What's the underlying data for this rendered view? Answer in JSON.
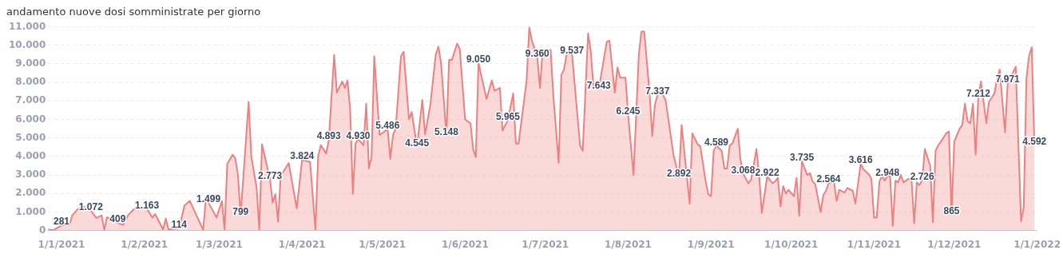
{
  "chart_data": {
    "type": "area",
    "title": "andamento nuove dosi somministrate per giorno",
    "xlim": [
      "2020-12-27",
      "2022-01-01"
    ],
    "xticks": [
      {
        "value": "2021-01-01",
        "label": "1/1/2021"
      },
      {
        "value": "2021-02-01",
        "label": "1/2/2021"
      },
      {
        "value": "2021-03-01",
        "label": "1/3/2021"
      },
      {
        "value": "2021-04-01",
        "label": "1/4/2021"
      },
      {
        "value": "2021-05-01",
        "label": "1/5/2021"
      },
      {
        "value": "2021-06-01",
        "label": "1/6/2021"
      },
      {
        "value": "2021-07-01",
        "label": "1/7/2021"
      },
      {
        "value": "2021-08-01",
        "label": "1/8/2021"
      },
      {
        "value": "2021-09-01",
        "label": "1/9/2021"
      },
      {
        "value": "2021-10-01",
        "label": "1/10/2021"
      },
      {
        "value": "2021-11-01",
        "label": "1/11/2021"
      },
      {
        "value": "2021-12-01",
        "label": "1/12/2021"
      },
      {
        "value": "2022-01-01",
        "label": "1/1/2022"
      }
    ],
    "ylim": [
      0,
      11000
    ],
    "yticks": [
      0,
      {
        "value": 1000,
        "label": "1.000"
      },
      {
        "value": 2000,
        "label": "2.000"
      },
      {
        "value": 3000,
        "label": "3.000"
      },
      {
        "value": 4000,
        "label": "4.000"
      },
      {
        "value": 5000,
        "label": "5.000"
      },
      {
        "value": 6000,
        "label": "6.000"
      },
      {
        "value": 7000,
        "label": "7.000"
      },
      {
        "value": 8000,
        "label": "8.000"
      },
      {
        "value": 9000,
        "label": "9.000"
      },
      {
        "value": 10000,
        "label": "10.000"
      },
      {
        "value": 11000,
        "label": "11.000"
      }
    ],
    "grid": "y",
    "legend": false,
    "x": [
      "2020-12-27",
      "2020-12-29",
      "2021-01-01",
      "2021-01-04",
      "2021-01-05",
      "2021-01-07",
      "2021-01-09",
      "2021-01-12",
      "2021-01-14",
      "2021-01-16",
      "2021-01-17",
      "2021-01-18",
      "2021-01-22",
      "2021-01-24",
      "2021-01-26",
      "2021-01-28",
      "2021-01-30",
      "2021-02-02",
      "2021-02-04",
      "2021-02-05",
      "2021-02-08",
      "2021-02-09",
      "2021-02-10",
      "2021-02-14",
      "2021-02-16",
      "2021-02-18",
      "2021-02-23",
      "2021-02-24",
      "2021-02-25",
      "2021-02-28",
      "2021-03-02",
      "2021-03-03",
      "2021-03-04",
      "2021-03-06",
      "2021-03-07",
      "2021-03-08",
      "2021-03-09",
      "2021-03-12",
      "2021-03-13",
      "2021-03-15",
      "2021-03-16",
      "2021-03-17",
      "2021-03-20",
      "2021-03-21",
      "2021-03-22",
      "2021-03-23",
      "2021-03-24",
      "2021-03-27",
      "2021-03-30",
      "2021-04-01",
      "2021-04-04",
      "2021-04-06",
      "2021-04-07",
      "2021-04-08",
      "2021-04-10",
      "2021-04-11",
      "2021-04-13",
      "2021-04-14",
      "2021-04-16",
      "2021-04-17",
      "2021-04-18",
      "2021-04-19",
      "2021-04-20",
      "2021-04-21",
      "2021-04-22",
      "2021-04-24",
      "2021-04-25",
      "2021-04-26",
      "2021-04-27",
      "2021-04-28",
      "2021-04-30",
      "2021-05-03",
      "2021-05-04",
      "2021-05-05",
      "2021-05-06",
      "2021-05-08",
      "2021-05-09",
      "2021-05-11",
      "2021-05-12",
      "2021-05-14",
      "2021-05-16",
      "2021-05-17",
      "2021-05-19",
      "2021-05-21",
      "2021-05-22",
      "2021-05-23",
      "2021-05-25",
      "2021-05-26",
      "2021-05-27",
      "2021-05-29",
      "2021-05-30",
      "2021-06-01",
      "2021-06-03",
      "2021-06-04",
      "2021-06-05",
      "2021-06-06",
      "2021-06-09",
      "2021-06-11",
      "2021-06-12",
      "2021-06-14",
      "2021-06-15",
      "2021-06-17",
      "2021-06-19",
      "2021-06-20",
      "2021-06-21",
      "2021-06-24",
      "2021-06-25",
      "2021-06-26",
      "2021-06-28",
      "2021-06-29",
      "2021-06-30",
      "2021-07-03",
      "2021-07-04",
      "2021-07-06",
      "2021-07-07",
      "2021-07-08",
      "2021-07-09",
      "2021-07-11",
      "2021-07-14",
      "2021-07-15",
      "2021-07-17",
      "2021-07-18",
      "2021-07-19",
      "2021-07-21",
      "2021-07-24",
      "2021-07-25",
      "2021-07-27",
      "2021-07-28",
      "2021-07-29",
      "2021-07-31",
      "2021-08-01",
      "2021-08-03",
      "2021-08-05",
      "2021-08-06",
      "2021-08-07",
      "2021-08-09",
      "2021-08-10",
      "2021-08-11",
      "2021-08-12",
      "2021-08-13",
      "2021-08-15",
      "2021-08-18",
      "2021-08-20",
      "2021-08-21",
      "2021-08-24",
      "2021-08-25",
      "2021-08-27",
      "2021-08-28",
      "2021-08-30",
      "2021-08-31",
      "2021-09-01",
      "2021-09-02",
      "2021-09-03",
      "2021-09-05",
      "2021-09-06",
      "2021-09-07",
      "2021-09-08",
      "2021-09-09",
      "2021-09-11",
      "2021-09-12",
      "2021-09-13",
      "2021-09-15",
      "2021-09-16",
      "2021-09-18",
      "2021-09-19",
      "2021-09-20",
      "2021-09-22",
      "2021-09-24",
      "2021-09-25",
      "2021-09-26",
      "2021-09-27",
      "2021-09-28",
      "2021-09-29",
      "2021-09-30",
      "2021-10-02",
      "2021-10-03",
      "2021-10-04",
      "2021-10-05",
      "2021-10-07",
      "2021-10-08",
      "2021-10-09",
      "2021-10-10",
      "2021-10-12",
      "2021-10-13",
      "2021-10-14",
      "2021-10-15",
      "2021-10-17",
      "2021-10-18",
      "2021-10-19",
      "2021-10-21",
      "2021-10-22",
      "2021-10-24",
      "2021-10-25",
      "2021-10-27",
      "2021-10-28",
      "2021-10-30",
      "2021-10-31",
      "2021-11-01",
      "2021-11-02",
      "2021-11-03",
      "2021-11-04",
      "2021-11-05",
      "2021-11-06",
      "2021-11-07",
      "2021-11-08",
      "2021-11-09",
      "2021-11-10",
      "2021-11-11",
      "2021-11-12",
      "2021-11-14",
      "2021-11-15",
      "2021-11-16",
      "2021-11-17",
      "2021-11-18",
      "2021-11-19",
      "2021-11-20",
      "2021-11-22",
      "2021-11-23",
      "2021-11-24",
      "2021-11-25",
      "2021-11-26",
      "2021-11-28",
      "2021-11-29",
      "2021-11-30",
      "2021-12-01",
      "2021-12-03",
      "2021-12-04",
      "2021-12-05",
      "2021-12-06",
      "2021-12-07",
      "2021-12-08",
      "2021-12-09",
      "2021-12-10",
      "2021-12-11",
      "2021-12-13",
      "2021-12-14",
      "2021-12-16",
      "2021-12-17",
      "2021-12-18",
      "2021-12-20",
      "2021-12-21",
      "2021-12-22",
      "2021-12-24",
      "2021-12-26",
      "2021-12-27",
      "2021-12-28",
      "2021-12-29",
      "2021-12-30",
      "2021-12-31"
    ],
    "series": [
      {
        "color": "#ee8080",
        "values": [
          60,
          20,
          281,
          300,
          820,
          1140,
          1320,
          1072,
          680,
          820,
          30,
          720,
          409,
          300,
          850,
          1150,
          1250,
          1163,
          700,
          900,
          60,
          650,
          60,
          114,
          1350,
          1600,
          30,
          1780,
          1499,
          700,
          1600,
          50,
          3600,
          4100,
          3900,
          3000,
          799,
          6950,
          4000,
          2300,
          50,
          4650,
          2773,
          1500,
          1970,
          480,
          2950,
          3650,
          1200,
          3824,
          3700,
          30,
          4000,
          4620,
          4150,
          4893,
          9480,
          7450,
          8050,
          7700,
          8100,
          6500,
          1980,
          4700,
          4930,
          4600,
          6850,
          3350,
          4000,
          9420,
          5160,
          5486,
          3870,
          5150,
          5500,
          9420,
          9650,
          6000,
          6400,
          4545,
          7050,
          5200,
          6800,
          9500,
          9930,
          9050,
          5148,
          9230,
          9200,
          10100,
          9800,
          6000,
          5800,
          4400,
          3950,
          9050,
          7100,
          8100,
          7550,
          7700,
          5400,
          5965,
          7400,
          4700,
          4700,
          8100,
          10950,
          10250,
          9360,
          7700,
          9700,
          9750,
          7300,
          3650,
          8400,
          8700,
          9550,
          9537,
          4600,
          4300,
          10650,
          9700,
          7800,
          7643,
          10200,
          10250,
          7450,
          8800,
          8250,
          8250,
          6245,
          3000,
          9550,
          10750,
          10750,
          7450,
          5100,
          6800,
          7337,
          7600,
          7050,
          4050,
          2892,
          5700,
          1450,
          5250,
          4650,
          4550,
          2650,
          1950,
          1850,
          4300,
          4589,
          4300,
          3350,
          3350,
          4600,
          4700,
          5500,
          3850,
          3068,
          2550,
          2750,
          4400,
          3000,
          950,
          2922,
          2550,
          2650,
          2850,
          1300,
          2400,
          2000,
          2200,
          1850,
          2850,
          800,
          3735,
          3000,
          3100,
          2650,
          2500,
          1000,
          1900,
          2150,
          2564,
          2650,
          1600,
          2200,
          2050,
          2300,
          2150,
          1450,
          3616,
          3300,
          3050,
          2800,
          700,
          700,
          2650,
          2950,
          2700,
          2948,
          2950,
          250,
          2700,
          2600,
          3000,
          2600,
          2800,
          2800,
          400,
          2600,
          2450,
          2726,
          4400,
          3500,
          450,
          4300,
          4600,
          4800,
          5250,
          5350,
          865,
          4800,
          5500,
          5700,
          6850,
          5900,
          5800,
          6850,
          4100,
          7212,
          8050,
          5800,
          6950,
          7400,
          8150,
          8700,
          5300,
          7971,
          8250,
          8850,
          500,
          1250,
          8200,
          9450,
          9900,
          4592
        ],
        "value_labels": [
          null,
          null,
          "281",
          null,
          null,
          null,
          null,
          "1.072",
          null,
          null,
          null,
          null,
          "409",
          null,
          null,
          null,
          null,
          "1.163",
          null,
          null,
          null,
          null,
          null,
          "114",
          null,
          null,
          null,
          null,
          "1.499",
          null,
          null,
          null,
          null,
          null,
          null,
          null,
          "799",
          null,
          null,
          null,
          null,
          null,
          "2.773",
          null,
          null,
          null,
          null,
          null,
          null,
          "3.824",
          null,
          null,
          null,
          null,
          null,
          "4.893",
          null,
          null,
          null,
          null,
          null,
          null,
          null,
          null,
          "4.930",
          null,
          null,
          null,
          null,
          null,
          null,
          "5.486",
          null,
          null,
          null,
          null,
          null,
          null,
          null,
          "4.545",
          null,
          null,
          null,
          null,
          null,
          null,
          "5.148",
          null,
          null,
          null,
          null,
          null,
          null,
          null,
          null,
          "9.050",
          null,
          null,
          null,
          null,
          null,
          "5.965",
          null,
          null,
          null,
          null,
          null,
          null,
          "9.360",
          null,
          null,
          null,
          null,
          null,
          null,
          null,
          null,
          "9.537",
          null,
          null,
          null,
          null,
          null,
          "7.643",
          null,
          null,
          null,
          null,
          null,
          null,
          "6.245",
          null,
          null,
          null,
          null,
          null,
          null,
          null,
          "7.337",
          null,
          null,
          null,
          "2.892",
          null,
          null,
          null,
          null,
          null,
          null,
          null,
          null,
          null,
          "4.589",
          null,
          null,
          null,
          null,
          null,
          null,
          null,
          "3.068",
          null,
          null,
          null,
          null,
          null,
          "2.922",
          null,
          null,
          null,
          null,
          null,
          null,
          null,
          null,
          null,
          null,
          "3.735",
          null,
          null,
          null,
          null,
          null,
          null,
          null,
          "2.564",
          null,
          null,
          null,
          null,
          null,
          null,
          null,
          "3.616",
          null,
          null,
          null,
          null,
          null,
          null,
          null,
          null,
          "2.948",
          null,
          null,
          null,
          null,
          null,
          null,
          null,
          null,
          null,
          null,
          null,
          "2.726",
          null,
          null,
          null,
          null,
          null,
          null,
          null,
          null,
          "865",
          null,
          null,
          null,
          null,
          null,
          null,
          null,
          null,
          "7.212",
          null,
          null,
          null,
          null,
          null,
          null,
          null,
          "7.971",
          null,
          null,
          null,
          null,
          null,
          null,
          null,
          "4.592"
        ]
      }
    ]
  }
}
